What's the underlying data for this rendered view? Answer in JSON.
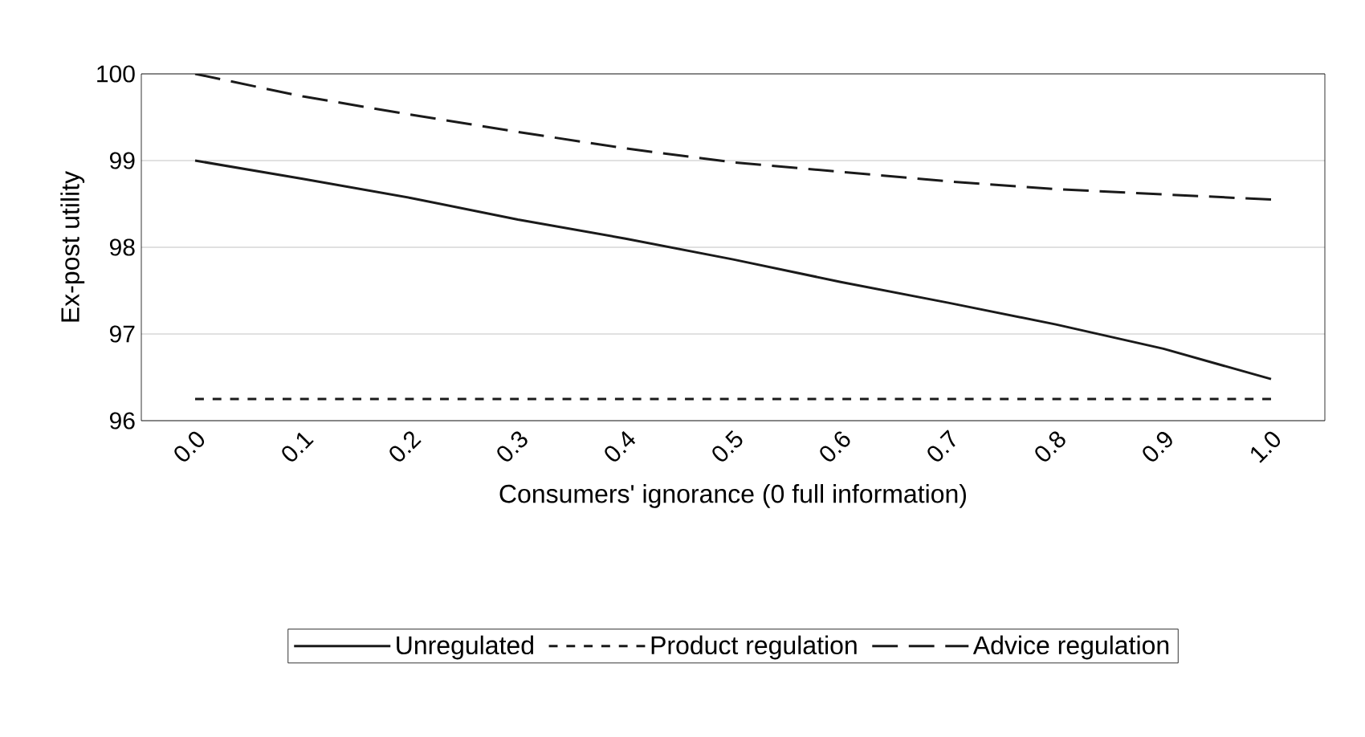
{
  "chart_data": {
    "type": "line",
    "xlabel": "Consumers' ignorance (0 full information)",
    "ylabel": "Ex-post utility",
    "categories": [
      "0.0",
      "0.1",
      "0.2",
      "0.3",
      "0.4",
      "0.5",
      "0.6",
      "0.7",
      "0.8",
      "0.9",
      "1.0"
    ],
    "series": [
      {
        "name": "Unregulated",
        "color": "#1a1a1a",
        "line_style": "solid",
        "values": [
          99.0,
          98.79,
          98.57,
          98.32,
          98.1,
          97.86,
          97.6,
          97.36,
          97.11,
          96.83,
          96.48
        ]
      },
      {
        "name": "Product regulation",
        "color": "#1a1a1a",
        "line_style": "dashed",
        "values": [
          96.25,
          96.25,
          96.25,
          96.25,
          96.25,
          96.25,
          96.25,
          96.25,
          96.25,
          96.25,
          96.25
        ]
      },
      {
        "name": "Advice regulation",
        "color": "#1a1a1a",
        "line_style": "longdashed",
        "values": [
          100.0,
          99.74,
          99.53,
          99.33,
          99.14,
          98.98,
          98.87,
          98.76,
          98.67,
          98.61,
          98.55
        ]
      }
    ],
    "ylim": [
      96,
      100
    ],
    "yticks": [
      96,
      97,
      98,
      99,
      100
    ],
    "grid": "y",
    "legend": "bottom",
    "marker": "none"
  }
}
